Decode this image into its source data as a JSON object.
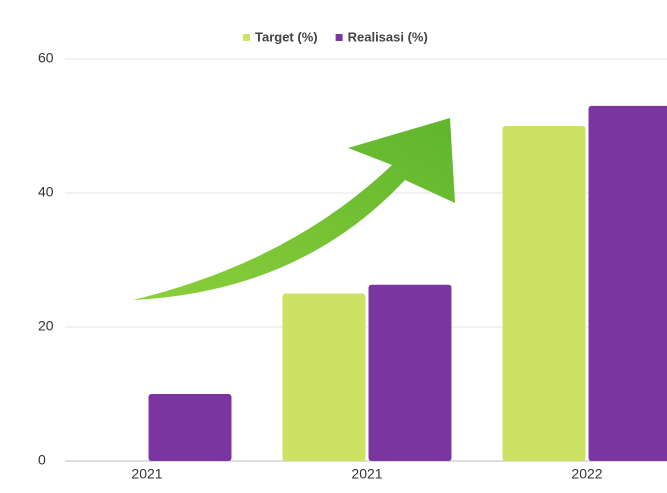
{
  "chart_data": {
    "type": "bar",
    "categories": [
      "2021",
      "2021",
      "2022"
    ],
    "series": [
      {
        "name": "Target (%)",
        "color": "#cde262",
        "values": [
          null,
          25,
          50
        ]
      },
      {
        "name": "Realisasi (%)",
        "color": "#7b35a0",
        "values": [
          10,
          26.3,
          53
        ]
      }
    ],
    "ylim": [
      0,
      60
    ],
    "yticks": [
      0,
      20,
      40,
      60
    ],
    "grid": true,
    "legend": "top"
  }
}
